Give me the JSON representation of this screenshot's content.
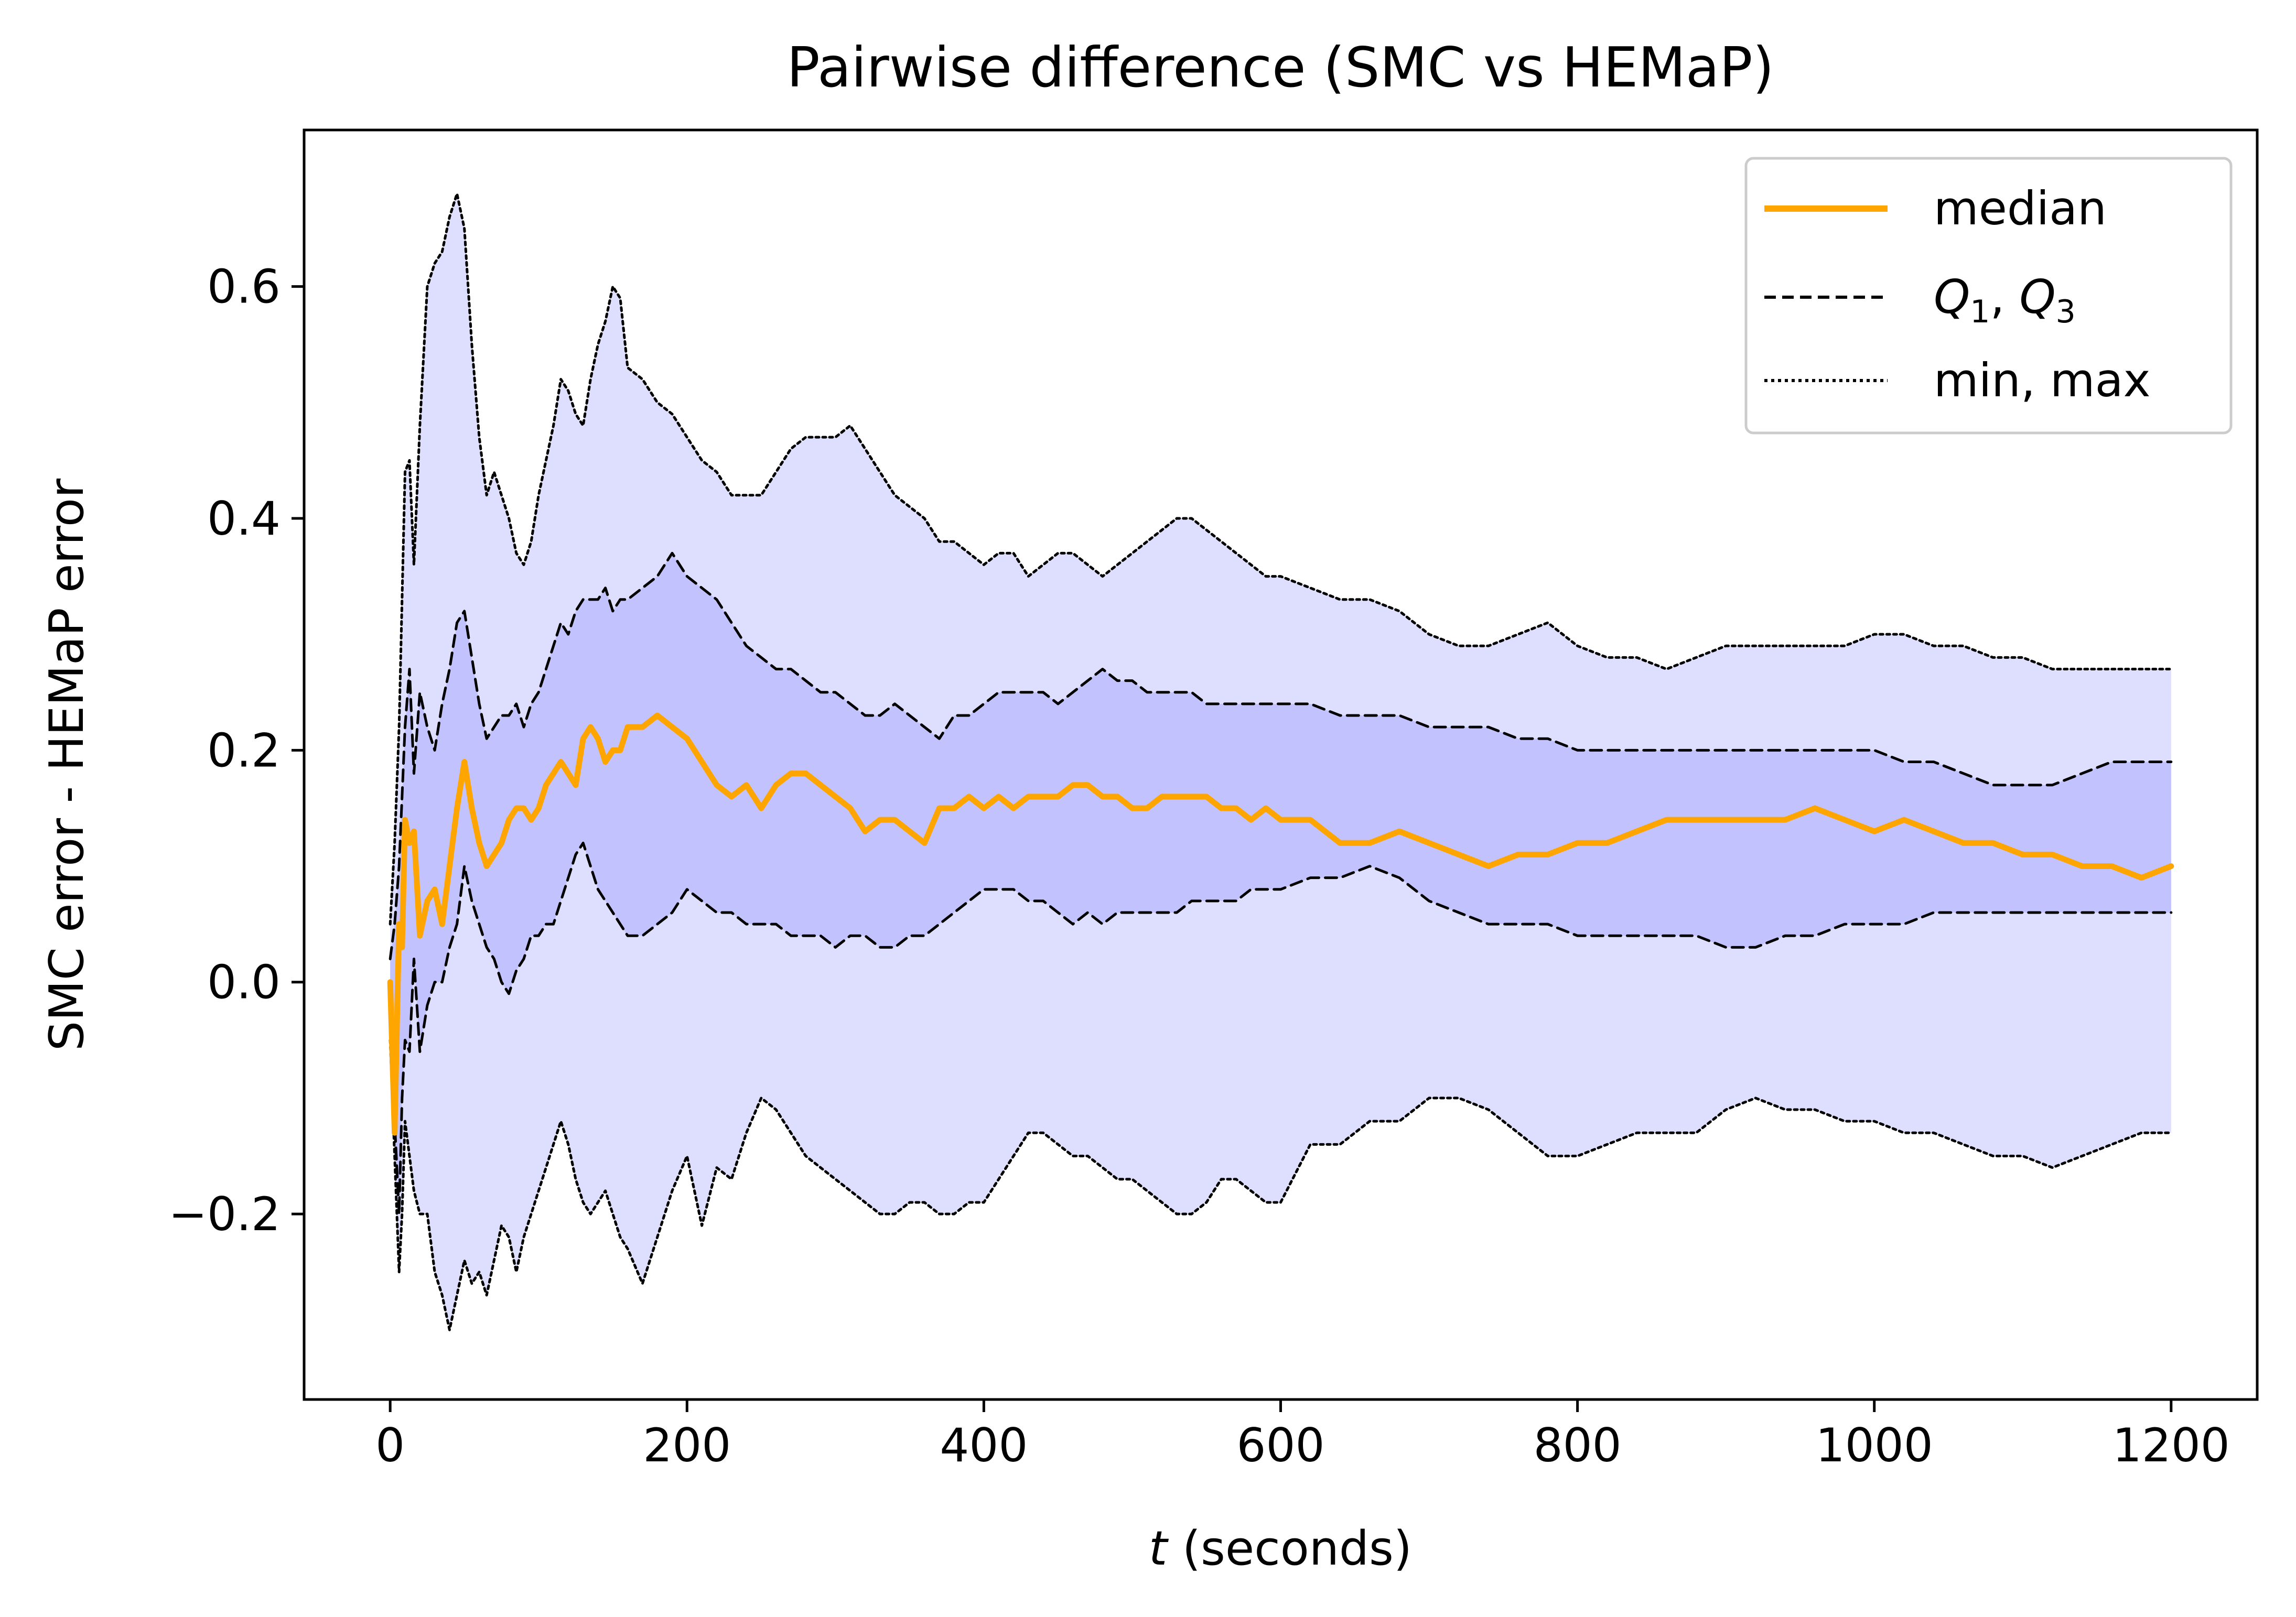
{
  "chart_data": {
    "type": "line",
    "title": "Pairwise difference (SMC vs HEMaP)",
    "xlabel_italic": "t",
    "xlabel_rest": " (seconds)",
    "ylabel": "SMC error - HEMaP error",
    "xlim": [
      -58,
      1258
    ],
    "ylim": [
      -0.36,
      0.735
    ],
    "xticks": [
      0,
      200,
      400,
      600,
      800,
      1000,
      1200
    ],
    "yticks": [
      -0.2,
      0.0,
      0.2,
      0.4,
      0.6
    ],
    "ytick_labels": [
      "−0.2",
      "0.0",
      "0.2",
      "0.4",
      "0.6"
    ],
    "grid": false,
    "legend_position": "top-right",
    "legend": {
      "median": "median",
      "quartiles_q": "Q",
      "quartiles_sub1": "1",
      "quartiles_sep": ", ",
      "quartiles_sub3": "3",
      "minmax": "min, max"
    },
    "colors": {
      "median": "#ffa500",
      "quartiles": "#000000",
      "minmax": "#000000",
      "outer_band": "#dedeff",
      "inner_band": "#c2c2ff"
    },
    "series": [
      {
        "name": "max",
        "x": [
          0,
          3,
          6,
          8,
          10,
          13,
          16,
          20,
          25,
          30,
          35,
          40,
          45,
          50,
          55,
          60,
          65,
          70,
          75,
          80,
          85,
          90,
          95,
          100,
          105,
          110,
          115,
          120,
          125,
          130,
          135,
          140,
          145,
          150,
          155,
          160,
          170,
          180,
          190,
          200,
          210,
          220,
          230,
          240,
          250,
          260,
          270,
          280,
          290,
          300,
          310,
          320,
          330,
          340,
          350,
          360,
          370,
          380,
          390,
          400,
          410,
          420,
          430,
          440,
          450,
          460,
          470,
          480,
          490,
          500,
          510,
          520,
          530,
          540,
          550,
          560,
          570,
          580,
          590,
          600,
          620,
          640,
          660,
          680,
          700,
          720,
          740,
          760,
          780,
          800,
          820,
          840,
          860,
          880,
          900,
          920,
          940,
          960,
          980,
          1000,
          1020,
          1040,
          1060,
          1080,
          1100,
          1120,
          1140,
          1160,
          1180,
          1200
        ],
        "values": [
          0.05,
          0.12,
          0.22,
          0.33,
          0.44,
          0.45,
          0.36,
          0.48,
          0.6,
          0.62,
          0.63,
          0.66,
          0.68,
          0.65,
          0.55,
          0.47,
          0.42,
          0.44,
          0.42,
          0.4,
          0.37,
          0.36,
          0.38,
          0.42,
          0.45,
          0.48,
          0.52,
          0.51,
          0.49,
          0.48,
          0.52,
          0.55,
          0.57,
          0.6,
          0.59,
          0.53,
          0.52,
          0.5,
          0.49,
          0.47,
          0.45,
          0.44,
          0.42,
          0.42,
          0.42,
          0.44,
          0.46,
          0.47,
          0.47,
          0.47,
          0.48,
          0.46,
          0.44,
          0.42,
          0.41,
          0.4,
          0.38,
          0.38,
          0.37,
          0.36,
          0.37,
          0.37,
          0.35,
          0.36,
          0.37,
          0.37,
          0.36,
          0.35,
          0.36,
          0.37,
          0.38,
          0.39,
          0.4,
          0.4,
          0.39,
          0.38,
          0.37,
          0.36,
          0.35,
          0.35,
          0.34,
          0.33,
          0.33,
          0.32,
          0.3,
          0.29,
          0.29,
          0.3,
          0.31,
          0.29,
          0.28,
          0.28,
          0.27,
          0.28,
          0.29,
          0.29,
          0.29,
          0.29,
          0.29,
          0.3,
          0.3,
          0.29,
          0.29,
          0.28,
          0.28,
          0.27,
          0.27,
          0.27,
          0.27,
          0.27
        ]
      },
      {
        "name": "Q3",
        "x": [
          0,
          3,
          6,
          8,
          10,
          13,
          16,
          20,
          25,
          30,
          35,
          40,
          45,
          50,
          55,
          60,
          65,
          70,
          75,
          80,
          85,
          90,
          95,
          100,
          105,
          110,
          115,
          120,
          125,
          130,
          135,
          140,
          145,
          150,
          155,
          160,
          170,
          180,
          190,
          200,
          210,
          220,
          230,
          240,
          250,
          260,
          270,
          280,
          290,
          300,
          310,
          320,
          330,
          340,
          350,
          360,
          370,
          380,
          390,
          400,
          410,
          420,
          430,
          440,
          450,
          460,
          470,
          480,
          490,
          500,
          510,
          520,
          530,
          540,
          550,
          560,
          570,
          580,
          590,
          600,
          620,
          640,
          660,
          680,
          700,
          720,
          740,
          760,
          780,
          800,
          820,
          840,
          860,
          880,
          900,
          920,
          940,
          960,
          980,
          1000,
          1020,
          1040,
          1060,
          1080,
          1100,
          1120,
          1140,
          1160,
          1180,
          1200
        ],
        "values": [
          0.02,
          0.05,
          0.1,
          0.16,
          0.22,
          0.27,
          0.18,
          0.25,
          0.22,
          0.2,
          0.24,
          0.27,
          0.31,
          0.32,
          0.28,
          0.24,
          0.21,
          0.22,
          0.23,
          0.23,
          0.24,
          0.22,
          0.24,
          0.25,
          0.27,
          0.29,
          0.31,
          0.3,
          0.32,
          0.33,
          0.33,
          0.33,
          0.34,
          0.32,
          0.33,
          0.33,
          0.34,
          0.35,
          0.37,
          0.35,
          0.34,
          0.33,
          0.31,
          0.29,
          0.28,
          0.27,
          0.27,
          0.26,
          0.25,
          0.25,
          0.24,
          0.23,
          0.23,
          0.24,
          0.23,
          0.22,
          0.21,
          0.23,
          0.23,
          0.24,
          0.25,
          0.25,
          0.25,
          0.25,
          0.24,
          0.25,
          0.26,
          0.27,
          0.26,
          0.26,
          0.25,
          0.25,
          0.25,
          0.25,
          0.24,
          0.24,
          0.24,
          0.24,
          0.24,
          0.24,
          0.24,
          0.23,
          0.23,
          0.23,
          0.22,
          0.22,
          0.22,
          0.21,
          0.21,
          0.2,
          0.2,
          0.2,
          0.2,
          0.2,
          0.2,
          0.2,
          0.2,
          0.2,
          0.2,
          0.2,
          0.19,
          0.19,
          0.18,
          0.17,
          0.17,
          0.17,
          0.18,
          0.19,
          0.19,
          0.19
        ]
      },
      {
        "name": "median",
        "x": [
          0,
          3,
          6,
          8,
          10,
          13,
          16,
          20,
          25,
          30,
          35,
          40,
          45,
          50,
          55,
          60,
          65,
          70,
          75,
          80,
          85,
          90,
          95,
          100,
          105,
          110,
          115,
          120,
          125,
          130,
          135,
          140,
          145,
          150,
          155,
          160,
          170,
          180,
          190,
          200,
          210,
          220,
          230,
          240,
          250,
          260,
          270,
          280,
          290,
          300,
          310,
          320,
          330,
          340,
          350,
          360,
          370,
          380,
          390,
          400,
          410,
          420,
          430,
          440,
          450,
          460,
          470,
          480,
          490,
          500,
          510,
          520,
          530,
          540,
          550,
          560,
          570,
          580,
          590,
          600,
          620,
          640,
          660,
          680,
          700,
          720,
          740,
          760,
          780,
          800,
          820,
          840,
          860,
          880,
          900,
          920,
          940,
          960,
          980,
          1000,
          1020,
          1040,
          1060,
          1080,
          1100,
          1120,
          1140,
          1160,
          1180,
          1200
        ],
        "values": [
          0.0,
          -0.13,
          0.05,
          0.03,
          0.14,
          0.12,
          0.13,
          0.04,
          0.07,
          0.08,
          0.05,
          0.1,
          0.15,
          0.19,
          0.15,
          0.12,
          0.1,
          0.11,
          0.12,
          0.14,
          0.15,
          0.15,
          0.14,
          0.15,
          0.17,
          0.18,
          0.19,
          0.18,
          0.17,
          0.21,
          0.22,
          0.21,
          0.19,
          0.2,
          0.2,
          0.22,
          0.22,
          0.23,
          0.22,
          0.21,
          0.19,
          0.17,
          0.16,
          0.17,
          0.15,
          0.17,
          0.18,
          0.18,
          0.17,
          0.16,
          0.15,
          0.13,
          0.14,
          0.14,
          0.13,
          0.12,
          0.15,
          0.15,
          0.16,
          0.15,
          0.16,
          0.15,
          0.16,
          0.16,
          0.16,
          0.17,
          0.17,
          0.16,
          0.16,
          0.15,
          0.15,
          0.16,
          0.16,
          0.16,
          0.16,
          0.15,
          0.15,
          0.14,
          0.15,
          0.14,
          0.14,
          0.12,
          0.12,
          0.13,
          0.12,
          0.11,
          0.1,
          0.11,
          0.11,
          0.12,
          0.12,
          0.13,
          0.14,
          0.14,
          0.14,
          0.14,
          0.14,
          0.15,
          0.14,
          0.13,
          0.14,
          0.13,
          0.12,
          0.12,
          0.11,
          0.11,
          0.1,
          0.1,
          0.09,
          0.1
        ]
      },
      {
        "name": "Q1",
        "x": [
          0,
          3,
          6,
          8,
          10,
          13,
          16,
          20,
          25,
          30,
          35,
          40,
          45,
          50,
          55,
          60,
          65,
          70,
          75,
          80,
          85,
          90,
          95,
          100,
          105,
          110,
          115,
          120,
          125,
          130,
          135,
          140,
          145,
          150,
          155,
          160,
          170,
          180,
          190,
          200,
          210,
          220,
          230,
          240,
          250,
          260,
          270,
          280,
          290,
          300,
          310,
          320,
          330,
          340,
          350,
          360,
          370,
          380,
          390,
          400,
          410,
          420,
          430,
          440,
          450,
          460,
          470,
          480,
          490,
          500,
          510,
          520,
          530,
          540,
          550,
          560,
          570,
          580,
          590,
          600,
          620,
          640,
          660,
          680,
          700,
          720,
          740,
          760,
          780,
          800,
          820,
          840,
          860,
          880,
          900,
          920,
          940,
          960,
          980,
          1000,
          1020,
          1040,
          1060,
          1080,
          1100,
          1120,
          1140,
          1160,
          1180,
          1200
        ],
        "values": [
          -0.02,
          -0.12,
          -0.2,
          -0.1,
          -0.05,
          -0.06,
          0.02,
          -0.06,
          -0.02,
          0.0,
          0.0,
          0.03,
          0.05,
          0.1,
          0.07,
          0.05,
          0.03,
          0.02,
          0.0,
          -0.01,
          0.01,
          0.02,
          0.04,
          0.04,
          0.05,
          0.05,
          0.07,
          0.09,
          0.11,
          0.12,
          0.1,
          0.08,
          0.07,
          0.06,
          0.05,
          0.04,
          0.04,
          0.05,
          0.06,
          0.08,
          0.07,
          0.06,
          0.06,
          0.05,
          0.05,
          0.05,
          0.04,
          0.04,
          0.04,
          0.03,
          0.04,
          0.04,
          0.03,
          0.03,
          0.04,
          0.04,
          0.05,
          0.06,
          0.07,
          0.08,
          0.08,
          0.08,
          0.07,
          0.07,
          0.06,
          0.05,
          0.06,
          0.05,
          0.06,
          0.06,
          0.06,
          0.06,
          0.06,
          0.07,
          0.07,
          0.07,
          0.07,
          0.08,
          0.08,
          0.08,
          0.09,
          0.09,
          0.1,
          0.09,
          0.07,
          0.06,
          0.05,
          0.05,
          0.05,
          0.04,
          0.04,
          0.04,
          0.04,
          0.04,
          0.03,
          0.03,
          0.04,
          0.04,
          0.05,
          0.05,
          0.05,
          0.06,
          0.06,
          0.06,
          0.06,
          0.06,
          0.06,
          0.06,
          0.06,
          0.06
        ]
      },
      {
        "name": "min",
        "x": [
          0,
          3,
          6,
          8,
          10,
          13,
          16,
          20,
          25,
          30,
          35,
          40,
          45,
          50,
          55,
          60,
          65,
          70,
          75,
          80,
          85,
          90,
          95,
          100,
          105,
          110,
          115,
          120,
          125,
          130,
          135,
          140,
          145,
          150,
          155,
          160,
          170,
          180,
          190,
          200,
          210,
          220,
          230,
          240,
          250,
          260,
          270,
          280,
          290,
          300,
          310,
          320,
          330,
          340,
          350,
          360,
          370,
          380,
          390,
          400,
          410,
          420,
          430,
          440,
          450,
          460,
          470,
          480,
          490,
          500,
          510,
          520,
          530,
          540,
          550,
          560,
          570,
          580,
          590,
          600,
          620,
          640,
          660,
          680,
          700,
          720,
          740,
          760,
          780,
          800,
          820,
          840,
          860,
          880,
          900,
          920,
          940,
          960,
          980,
          1000,
          1020,
          1040,
          1060,
          1080,
          1100,
          1120,
          1140,
          1160,
          1180,
          1200
        ],
        "values": [
          -0.05,
          -0.15,
          -0.25,
          -0.2,
          -0.12,
          -0.15,
          -0.18,
          -0.2,
          -0.2,
          -0.25,
          -0.27,
          -0.3,
          -0.27,
          -0.24,
          -0.26,
          -0.25,
          -0.27,
          -0.24,
          -0.21,
          -0.22,
          -0.25,
          -0.22,
          -0.2,
          -0.18,
          -0.16,
          -0.14,
          -0.12,
          -0.14,
          -0.17,
          -0.19,
          -0.2,
          -0.19,
          -0.18,
          -0.2,
          -0.22,
          -0.23,
          -0.26,
          -0.22,
          -0.18,
          -0.15,
          -0.21,
          -0.16,
          -0.17,
          -0.13,
          -0.1,
          -0.11,
          -0.13,
          -0.15,
          -0.16,
          -0.17,
          -0.18,
          -0.19,
          -0.2,
          -0.2,
          -0.19,
          -0.19,
          -0.2,
          -0.2,
          -0.19,
          -0.19,
          -0.17,
          -0.15,
          -0.13,
          -0.13,
          -0.14,
          -0.15,
          -0.15,
          -0.16,
          -0.17,
          -0.17,
          -0.18,
          -0.19,
          -0.2,
          -0.2,
          -0.19,
          -0.17,
          -0.17,
          -0.18,
          -0.19,
          -0.19,
          -0.14,
          -0.14,
          -0.12,
          -0.12,
          -0.1,
          -0.1,
          -0.11,
          -0.13,
          -0.15,
          -0.15,
          -0.14,
          -0.13,
          -0.13,
          -0.13,
          -0.11,
          -0.1,
          -0.11,
          -0.11,
          -0.12,
          -0.12,
          -0.13,
          -0.13,
          -0.14,
          -0.15,
          -0.15,
          -0.16,
          -0.15,
          -0.14,
          -0.13,
          -0.13
        ]
      }
    ]
  }
}
